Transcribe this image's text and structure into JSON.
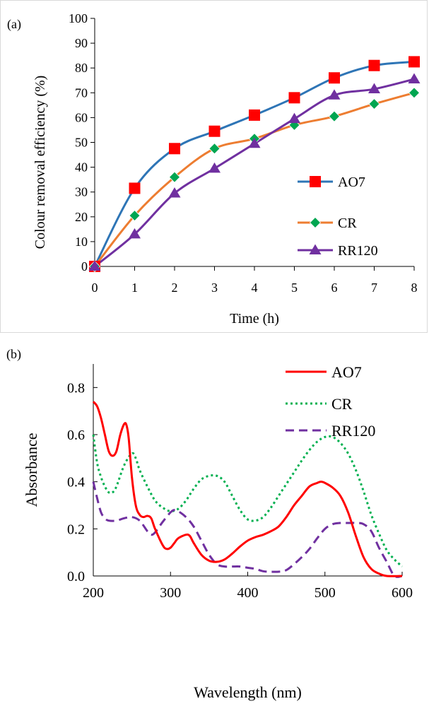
{
  "chart_data": [
    {
      "type": "line",
      "panel_label": "(a)",
      "xlabel": "Time (h)",
      "ylabel": "Colour removal efficiency (%)",
      "xlim": [
        0,
        8
      ],
      "ylim": [
        0,
        100
      ],
      "xticks": [
        0,
        1,
        2,
        3,
        4,
        5,
        6,
        7,
        8
      ],
      "yticks": [
        0,
        10,
        20,
        30,
        40,
        50,
        60,
        70,
        80,
        90,
        100
      ],
      "grid": false,
      "legend_position": "right",
      "x": [
        0,
        1,
        2,
        3,
        4,
        5,
        6,
        7,
        8
      ],
      "series": [
        {
          "name": "AO7",
          "values": [
            0,
            31.5,
            47.5,
            54.5,
            61,
            68,
            76,
            81,
            82.5
          ],
          "color": "#2e75b6",
          "marker": "square",
          "marker_color": "#ff0000"
        },
        {
          "name": "CR",
          "values": [
            0,
            20.5,
            36,
            47.5,
            51.5,
            57,
            60.5,
            65.5,
            70
          ],
          "color": "#ed7d31",
          "marker": "diamond",
          "marker_color": "#00a651"
        },
        {
          "name": "RR120",
          "values": [
            0,
            13,
            29.5,
            39.5,
            49.5,
            59.5,
            69,
            71.5,
            75.5
          ],
          "color": "#7030a0",
          "marker": "triangle",
          "marker_color": "#7030a0"
        }
      ]
    },
    {
      "type": "line",
      "panel_label": "(b)",
      "xlabel": "Wavelength (nm)",
      "ylabel": "Absorbance",
      "xlim": [
        200,
        600
      ],
      "ylim": [
        0,
        0.9
      ],
      "xticks": [
        200,
        300,
        400,
        500,
        600
      ],
      "yticks": [
        "0.0",
        "0.2",
        "0.4",
        "0.6",
        "0.8"
      ],
      "grid": false,
      "legend_position": "top-right",
      "series": [
        {
          "name": "AO7",
          "color": "#ff0000",
          "dash": "solid",
          "points": [
            [
              200,
              0.74
            ],
            [
              205,
              0.72
            ],
            [
              210,
              0.67
            ],
            [
              215,
              0.6
            ],
            [
              220,
              0.53
            ],
            [
              225,
              0.51
            ],
            [
              230,
              0.53
            ],
            [
              235,
              0.6
            ],
            [
              240,
              0.645
            ],
            [
              243,
              0.64
            ],
            [
              246,
              0.58
            ],
            [
              250,
              0.42
            ],
            [
              255,
              0.3
            ],
            [
              260,
              0.26
            ],
            [
              265,
              0.25
            ],
            [
              270,
              0.255
            ],
            [
              275,
              0.245
            ],
            [
              280,
              0.2
            ],
            [
              290,
              0.13
            ],
            [
              295,
              0.115
            ],
            [
              300,
              0.12
            ],
            [
              305,
              0.14
            ],
            [
              310,
              0.16
            ],
            [
              320,
              0.175
            ],
            [
              325,
              0.17
            ],
            [
              330,
              0.14
            ],
            [
              340,
              0.09
            ],
            [
              350,
              0.065
            ],
            [
              360,
              0.06
            ],
            [
              370,
              0.07
            ],
            [
              380,
              0.095
            ],
            [
              390,
              0.125
            ],
            [
              400,
              0.15
            ],
            [
              410,
              0.165
            ],
            [
              420,
              0.175
            ],
            [
              430,
              0.19
            ],
            [
              440,
              0.21
            ],
            [
              450,
              0.25
            ],
            [
              460,
              0.3
            ],
            [
              470,
              0.34
            ],
            [
              480,
              0.38
            ],
            [
              490,
              0.395
            ],
            [
              495,
              0.4
            ],
            [
              500,
              0.395
            ],
            [
              510,
              0.375
            ],
            [
              520,
              0.34
            ],
            [
              530,
              0.27
            ],
            [
              540,
              0.17
            ],
            [
              550,
              0.08
            ],
            [
              560,
              0.03
            ],
            [
              570,
              0.01
            ],
            [
              580,
              0.0
            ],
            [
              600,
              0.0
            ]
          ]
        },
        {
          "name": "CR",
          "color": "#00b050",
          "dash": "dotted",
          "points": [
            [
              200,
              0.6
            ],
            [
              205,
              0.48
            ],
            [
              210,
              0.42
            ],
            [
              215,
              0.38
            ],
            [
              220,
              0.355
            ],
            [
              225,
              0.355
            ],
            [
              230,
              0.38
            ],
            [
              240,
              0.47
            ],
            [
              250,
              0.52
            ],
            [
              255,
              0.5
            ],
            [
              260,
              0.45
            ],
            [
              270,
              0.38
            ],
            [
              280,
              0.32
            ],
            [
              290,
              0.29
            ],
            [
              300,
              0.275
            ],
            [
              310,
              0.285
            ],
            [
              320,
              0.32
            ],
            [
              330,
              0.37
            ],
            [
              340,
              0.41
            ],
            [
              350,
              0.425
            ],
            [
              360,
              0.425
            ],
            [
              370,
              0.4
            ],
            [
              380,
              0.34
            ],
            [
              390,
              0.28
            ],
            [
              400,
              0.24
            ],
            [
              410,
              0.235
            ],
            [
              420,
              0.25
            ],
            [
              430,
              0.29
            ],
            [
              440,
              0.34
            ],
            [
              450,
              0.39
            ],
            [
              460,
              0.44
            ],
            [
              470,
              0.49
            ],
            [
              480,
              0.535
            ],
            [
              490,
              0.57
            ],
            [
              500,
              0.59
            ],
            [
              510,
              0.59
            ],
            [
              520,
              0.565
            ],
            [
              530,
              0.52
            ],
            [
              540,
              0.45
            ],
            [
              550,
              0.36
            ],
            [
              560,
              0.26
            ],
            [
              570,
              0.18
            ],
            [
              580,
              0.11
            ],
            [
              590,
              0.07
            ],
            [
              600,
              0.04
            ]
          ]
        },
        {
          "name": "RR120",
          "color": "#7030a0",
          "dash": "dashed",
          "points": [
            [
              200,
              0.4
            ],
            [
              205,
              0.33
            ],
            [
              210,
              0.27
            ],
            [
              215,
              0.245
            ],
            [
              220,
              0.235
            ],
            [
              230,
              0.235
            ],
            [
              240,
              0.245
            ],
            [
              250,
              0.25
            ],
            [
              260,
              0.235
            ],
            [
              270,
              0.19
            ],
            [
              275,
              0.175
            ],
            [
              280,
              0.185
            ],
            [
              290,
              0.23
            ],
            [
              300,
              0.27
            ],
            [
              305,
              0.28
            ],
            [
              310,
              0.275
            ],
            [
              320,
              0.25
            ],
            [
              330,
              0.21
            ],
            [
              340,
              0.15
            ],
            [
              350,
              0.09
            ],
            [
              360,
              0.05
            ],
            [
              370,
              0.04
            ],
            [
              380,
              0.04
            ],
            [
              390,
              0.04
            ],
            [
              400,
              0.035
            ],
            [
              410,
              0.03
            ],
            [
              420,
              0.02
            ],
            [
              430,
              0.018
            ],
            [
              440,
              0.018
            ],
            [
              450,
              0.025
            ],
            [
              460,
              0.05
            ],
            [
              470,
              0.08
            ],
            [
              480,
              0.115
            ],
            [
              490,
              0.16
            ],
            [
              500,
              0.2
            ],
            [
              510,
              0.22
            ],
            [
              520,
              0.225
            ],
            [
              530,
              0.225
            ],
            [
              540,
              0.225
            ],
            [
              550,
              0.22
            ],
            [
              560,
              0.19
            ],
            [
              570,
              0.12
            ],
            [
              580,
              0.06
            ],
            [
              590,
              0.0
            ],
            [
              600,
              0.0
            ]
          ]
        }
      ]
    }
  ]
}
